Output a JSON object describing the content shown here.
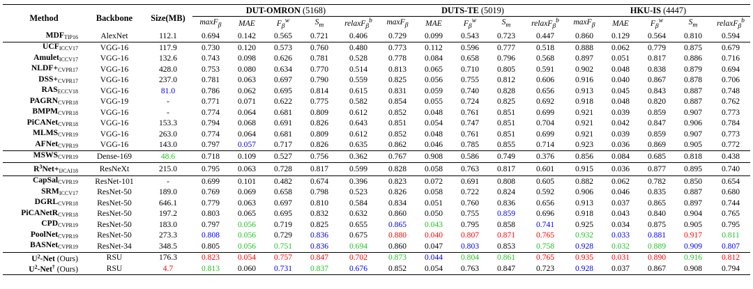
{
  "headers": {
    "method": "Method",
    "backbone": "Backbone",
    "size": "Size(MB)",
    "groups": [
      {
        "name": "DUT-OMRON",
        "count": "(5168)"
      },
      {
        "name": "DUTS-TE",
        "count": "(5019)"
      },
      {
        "name": "HKU-IS",
        "count": "(4447)"
      }
    ],
    "metrics": [
      "maxFβ",
      "MAE",
      "Fβw",
      "Sm",
      "relaxFβb"
    ]
  },
  "colors": {
    "red": "#ff0000",
    "green": "#22c222",
    "blue": "#0000ee"
  },
  "rows": [
    {
      "m": "MDF",
      "sub": "TIP16",
      "b": "AlexNet",
      "s": "112.1",
      "v": [
        "0.694",
        "0.142",
        "0.565",
        "0.721",
        "0.406",
        "0.729",
        "0.099",
        "0.543",
        "0.723",
        "0.447",
        "0.860",
        "0.129",
        "0.564",
        "0.810",
        "0.594"
      ],
      "c": {}
    },
    {
      "m": "UCF",
      "sub": "ICCV17",
      "b": "VGG-16",
      "s": "117.9",
      "v": [
        "0.730",
        "0.120",
        "0.573",
        "0.760",
        "0.480",
        "0.773",
        "0.112",
        "0.596",
        "0.777",
        "0.518",
        "0.888",
        "0.062",
        "0.779",
        "0.875",
        "0.679"
      ],
      "c": {},
      "sep": true
    },
    {
      "m": "Amulet",
      "sub": "ICCV17",
      "b": "VGG-16",
      "s": "132.6",
      "v": [
        "0.743",
        "0.098",
        "0.626",
        "0.781",
        "0.528",
        "0.778",
        "0.084",
        "0.658",
        "0.796",
        "0.568",
        "0.897",
        "0.051",
        "0.817",
        "0.886",
        "0.716"
      ],
      "c": {}
    },
    {
      "m": "NLDF+",
      "sub": "CVPR17",
      "b": "VGG-16",
      "s": "428.0",
      "v": [
        "0.753",
        "0.080",
        "0.634",
        "0.770",
        "0.514",
        "0.813",
        "0.065",
        "0.710",
        "0.805",
        "0.591",
        "0.902",
        "0.048",
        "0.838",
        "0.879",
        "0.694"
      ],
      "c": {}
    },
    {
      "m": "DSS+",
      "sub": "CVPR17",
      "b": "VGG-16",
      "s": "237.0",
      "v": [
        "0.781",
        "0.063",
        "0.697",
        "0.790",
        "0.559",
        "0.825",
        "0.056",
        "0.755",
        "0.812",
        "0.606",
        "0.916",
        "0.040",
        "0.867",
        "0.878",
        "0.706"
      ],
      "c": {}
    },
    {
      "m": "RAS",
      "sub": "ECCV18",
      "b": "VGG-16",
      "s": "81.0",
      "v": [
        "0.786",
        "0.062",
        "0.695",
        "0.814",
        "0.615",
        "0.831",
        "0.059",
        "0.740",
        "0.828",
        "0.656",
        "0.913",
        "0.045",
        "0.843",
        "0.887",
        "0.748"
      ],
      "c": {
        "s": "blue"
      }
    },
    {
      "m": "PAGRN",
      "sub": "CVPR18",
      "b": "VGG-19",
      "s": "-",
      "v": [
        "0.771",
        "0.071",
        "0.622",
        "0.775",
        "0.582",
        "0.854",
        "0.055",
        "0.724",
        "0.825",
        "0.692",
        "0.918",
        "0.048",
        "0.820",
        "0.887",
        "0.762"
      ],
      "c": {}
    },
    {
      "m": "BMPM",
      "sub": "CVPR18",
      "b": "VGG-16",
      "s": "-",
      "v": [
        "0.774",
        "0.064",
        "0.681",
        "0.809",
        "0.612",
        "0.852",
        "0.048",
        "0.761",
        "0.851",
        "0.699",
        "0.921",
        "0.039",
        "0.859",
        "0.907",
        "0.773"
      ],
      "c": {}
    },
    {
      "m": "PiCANet",
      "sub": "CVPR18",
      "b": "VGG-16",
      "s": "153.3",
      "v": [
        "0.794",
        "0.068",
        "0.691",
        "0.826",
        "0.643",
        "0.851",
        "0.054",
        "0.747",
        "0.851",
        "0.704",
        "0.921",
        "0.042",
        "0.847",
        "0.906",
        "0.784"
      ],
      "c": {}
    },
    {
      "m": "MLMS",
      "sub": "CVPR19",
      "b": "VGG-16",
      "s": "263.0",
      "v": [
        "0.774",
        "0.064",
        "0.681",
        "0.809",
        "0.612",
        "0.852",
        "0.048",
        "0.761",
        "0.851",
        "0.699",
        "0.921",
        "0.039",
        "0.859",
        "0.907",
        "0.773"
      ],
      "c": {}
    },
    {
      "m": "AFNet",
      "sub": "CVPR19",
      "b": "VGG-16",
      "s": "143.0",
      "v": [
        "0.797",
        "0.057",
        "0.717",
        "0.826",
        "0.635",
        "0.862",
        "0.046",
        "0.785",
        "0.855",
        "0.714",
        "0.923",
        "0.036",
        "0.869",
        "0.905",
        "0.772"
      ],
      "c": {
        "1": "blue"
      }
    },
    {
      "m": "MSWS",
      "sub": "CVPR19",
      "b": "Dense-169",
      "s": "48.6",
      "v": [
        "0.718",
        "0.109",
        "0.527",
        "0.756",
        "0.362",
        "0.767",
        "0.908",
        "0.586",
        "0.749",
        "0.376",
        "0.856",
        "0.084",
        "0.685",
        "0.818",
        "0.438"
      ],
      "c": {
        "s": "green"
      },
      "sep": true
    },
    {
      "m": "R",
      "sup": "3",
      "m2": "Net+",
      "sub": "IJCAI18",
      "b": "ResNeXt",
      "s": "215.0",
      "v": [
        "0.795",
        "0.063",
        "0.728",
        "0.817",
        "0.599",
        "0.828",
        "0.058",
        "0.763",
        "0.817",
        "0.601",
        "0.915",
        "0.036",
        "0.877",
        "0.895",
        "0.740"
      ],
      "c": {},
      "sep": true
    },
    {
      "m": "CapSal",
      "sub": "CVPR19",
      "b": "ResNet-101",
      "s": "-",
      "v": [
        "0.699",
        "0.101",
        "0.482",
        "0.674",
        "0.396",
        "0.823",
        "0.072",
        "0.691",
        "0.808",
        "0.605",
        "0.882",
        "0.062",
        "0.782",
        "0.850",
        "0.654"
      ],
      "c": {},
      "sep": true
    },
    {
      "m": "SRM",
      "sub": "ICCV17",
      "b": "ResNet-50",
      "s": "189.0",
      "v": [
        "0.769",
        "0.069",
        "0.658",
        "0.798",
        "0.523",
        "0.826",
        "0.058",
        "0.722",
        "0.824",
        "0.592",
        "0.906",
        "0.046",
        "0.835",
        "0.887",
        "0.680"
      ],
      "c": {}
    },
    {
      "m": "DGRL",
      "sub": "CVPR18",
      "b": "ResNet-50",
      "s": "646.1",
      "v": [
        "0.779",
        "0.063",
        "0.697",
        "0.810",
        "0.584",
        "0.834",
        "0.051",
        "0.760",
        "0.836",
        "0.656",
        "0.913",
        "0.037",
        "0.865",
        "0.897",
        "0.744"
      ],
      "c": {}
    },
    {
      "m": "PiCANetR",
      "sub": "CVPR18",
      "b": "ResNet-50",
      "s": "197.2",
      "v": [
        "0.803",
        "0.065",
        "0.695",
        "0.832",
        "0.632",
        "0.860",
        "0.050",
        "0.755",
        "0.859",
        "0.696",
        "0.918",
        "0.043",
        "0.840",
        "0.904",
        "0.765"
      ],
      "c": {
        "8": "blue"
      }
    },
    {
      "m": "CPD",
      "sub": "CVPR19",
      "b": "ResNet-50",
      "s": "183.0",
      "v": [
        "0.797",
        "0.056",
        "0.719",
        "0.825",
        "0.655",
        "0.865",
        "0.043",
        "0.795",
        "0.858",
        "0.741",
        "0.925",
        "0.034",
        "0.875",
        "0.905",
        "0.795"
      ],
      "c": {
        "1": "green",
        "5": "blue",
        "6": "green",
        "9": "blue"
      }
    },
    {
      "m": "PoolNet",
      "sub": "CVPR19",
      "b": "ResNet-50",
      "s": "273.3",
      "v": [
        "0.808",
        "0.056",
        "0.729",
        "0.836",
        "0.675",
        "0.880",
        "0.040",
        "0.807",
        "0.871",
        "0.765",
        "0.932",
        "0.033",
        "0.881",
        "0.917",
        "0.811"
      ],
      "c": {
        "0": "blue",
        "1": "green",
        "3": "blue",
        "5": "red",
        "6": "red",
        "7": "red",
        "8": "red",
        "9": "red",
        "10": "green",
        "11": "blue",
        "12": "blue",
        "13": "red",
        "14": "green"
      }
    },
    {
      "m": "BASNet",
      "sub": "CVPR19",
      "b": "ResNet-34",
      "s": "348.5",
      "v": [
        "0.805",
        "0.056",
        "0.751",
        "0.836",
        "0.694",
        "0.860",
        "0.047",
        "0.803",
        "0.853",
        "0.758",
        "0.928",
        "0.032",
        "0.889",
        "0.909",
        "0.807"
      ],
      "c": {
        "1": "green",
        "2": "green",
        "3": "blue",
        "4": "green",
        "7": "blue",
        "9": "green",
        "10": "blue",
        "11": "green",
        "12": "green",
        "13": "blue",
        "14": "blue"
      }
    },
    {
      "m": "U",
      "sup": "2",
      "m2": "-Net",
      "note": " (Ours)",
      "b": "RSU",
      "s": "176.3",
      "v": [
        "0.823",
        "0.054",
        "0.757",
        "0.847",
        "0.702",
        "0.873",
        "0.044",
        "0.804",
        "0.861",
        "0.765",
        "0.935",
        "0.031",
        "0.890",
        "0.916",
        "0.812"
      ],
      "c": {
        "0": "red",
        "1": "red",
        "2": "red",
        "3": "red",
        "4": "red",
        "5": "green",
        "6": "blue",
        "7": "green",
        "8": "green",
        "9": "red",
        "10": "red",
        "11": "red",
        "12": "red",
        "13": "green",
        "14": "red"
      },
      "sep": true
    },
    {
      "m": "U",
      "sup": "2",
      "m2": "-Net",
      "dag": "†",
      "note": " (Ours)",
      "b": "RSU",
      "s": "4.7",
      "v": [
        "0.813",
        "0.060",
        "0.731",
        "0.837",
        "0.676",
        "0.852",
        "0.054",
        "0.763",
        "0.847",
        "0.723",
        "0.928",
        "0.037",
        "0.867",
        "0.908",
        "0.794"
      ],
      "c": {
        "s": "red",
        "0": "green",
        "2": "blue",
        "3": "green",
        "4": "blue",
        "10": "blue"
      },
      "last": true
    }
  ]
}
